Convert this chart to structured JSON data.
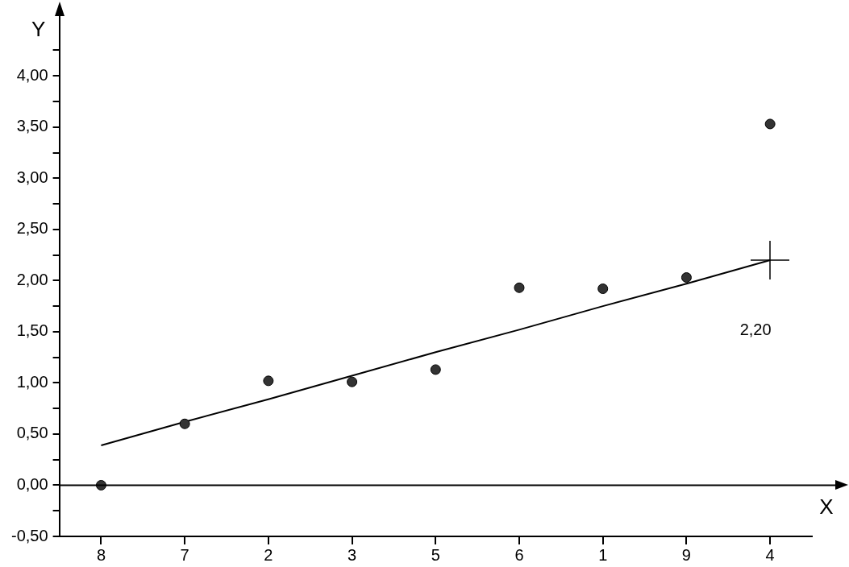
{
  "chart_data": {
    "type": "scatter",
    "xlabel": "X",
    "ylabel": "Y",
    "categories": [
      "8",
      "7",
      "2",
      "3",
      "5",
      "6",
      "1",
      "9",
      "4"
    ],
    "series": [
      {
        "type": "scatter",
        "color": "#000000",
        "marker": "circle",
        "values": [
          0.0,
          0.6,
          1.02,
          1.01,
          1.13,
          1.93,
          1.92,
          2.03,
          3.53
        ]
      },
      {
        "type": "line",
        "color": "#000000",
        "marker": "none",
        "values": [
          0.39,
          0.62,
          0.84,
          1.07,
          1.3,
          1.52,
          1.75,
          1.97,
          2.2
        ]
      }
    ],
    "ylim": [
      -0.5,
      4.6
    ],
    "yticks": [
      {
        "value": -0.5,
        "label": "-0,50"
      },
      {
        "value": -0.25,
        "label": null
      },
      {
        "value": 0,
        "label": "0,00"
      },
      {
        "value": 0.25,
        "label": null
      },
      {
        "value": 0.5,
        "label": "0,50"
      },
      {
        "value": 0.75,
        "label": null
      },
      {
        "value": 1,
        "label": "1,00"
      },
      {
        "value": 1.25,
        "label": null
      },
      {
        "value": 1.5,
        "label": "1,50"
      },
      {
        "value": 1.75,
        "label": null
      },
      {
        "value": 2,
        "label": "2,00"
      },
      {
        "value": 2.25,
        "label": null
      },
      {
        "value": 2.5,
        "label": "2,50"
      },
      {
        "value": 2.75,
        "label": null
      },
      {
        "value": 3,
        "label": "3,00"
      },
      {
        "value": 3.25,
        "label": null
      },
      {
        "value": 3.5,
        "label": "3,50"
      },
      {
        "value": 3.75,
        "label": null
      },
      {
        "value": 4,
        "label": "4,00"
      },
      {
        "value": 4.25,
        "label": null
      }
    ],
    "ref_lines": [
      {
        "axis": "y",
        "value": 0,
        "color": "#000000"
      }
    ],
    "annotations": [
      "2,20"
    ],
    "grid": false,
    "legend": false
  }
}
